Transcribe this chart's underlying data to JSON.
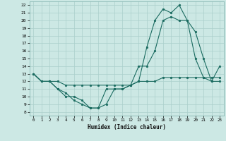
{
  "xlabel": "Humidex (Indice chaleur)",
  "background_color": "#cce8e4",
  "grid_color": "#aacfcb",
  "line_color": "#1a6b60",
  "xlim": [
    -0.5,
    23.5
  ],
  "ylim": [
    7.5,
    22.5
  ],
  "xticks": [
    0,
    1,
    2,
    3,
    4,
    5,
    6,
    7,
    8,
    9,
    10,
    11,
    12,
    13,
    14,
    15,
    16,
    17,
    18,
    19,
    20,
    21,
    22,
    23
  ],
  "yticks": [
    8,
    9,
    10,
    11,
    12,
    13,
    14,
    15,
    16,
    17,
    18,
    19,
    20,
    21,
    22
  ],
  "line1_x": [
    0,
    1,
    2,
    3,
    4,
    5,
    6,
    7,
    8,
    9,
    10,
    11,
    12,
    13,
    14,
    15,
    16,
    17,
    18,
    19,
    20,
    21,
    22,
    23
  ],
  "line1_y": [
    13,
    12,
    12,
    11,
    10.5,
    9.5,
    9,
    8.5,
    8.5,
    9,
    11,
    11,
    11.5,
    12,
    16.5,
    20,
    21.5,
    21,
    22,
    20,
    15,
    12.5,
    12,
    12
  ],
  "line2_x": [
    0,
    1,
    2,
    3,
    4,
    5,
    6,
    7,
    8,
    9,
    10,
    11,
    12,
    13,
    14,
    15,
    16,
    17,
    18,
    19,
    20,
    21,
    22,
    23
  ],
  "line2_y": [
    13,
    12,
    12,
    11,
    10,
    10,
    9.5,
    8.5,
    8.5,
    11,
    11,
    11,
    11.5,
    14,
    14,
    16,
    20,
    20.5,
    20,
    20,
    18.5,
    15,
    12,
    14
  ],
  "line3_x": [
    0,
    1,
    2,
    3,
    4,
    5,
    6,
    7,
    8,
    9,
    10,
    11,
    12,
    13,
    14,
    15,
    16,
    17,
    18,
    19,
    20,
    21,
    22,
    23
  ],
  "line3_y": [
    13,
    12,
    12,
    12,
    11.5,
    11.5,
    11.5,
    11.5,
    11.5,
    11.5,
    11.5,
    11.5,
    11.5,
    12,
    12,
    12,
    12.5,
    12.5,
    12.5,
    12.5,
    12.5,
    12.5,
    12.5,
    12.5
  ]
}
